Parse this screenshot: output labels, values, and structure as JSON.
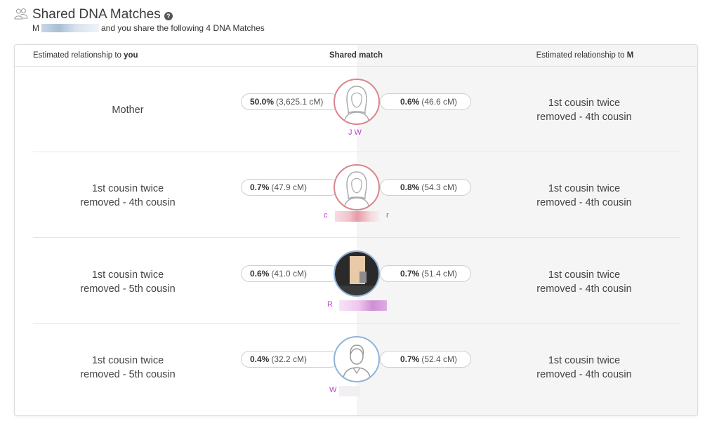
{
  "header": {
    "title": "Shared DNA Matches",
    "help_symbol": "?",
    "subtitle_initial": "M",
    "subtitle_text": "and you share the following 4 DNA Matches"
  },
  "columns": {
    "left_prefix": "Estimated relationship to ",
    "left_bold": "you",
    "middle": "Shared match",
    "right_prefix": "Estimated relationship to ",
    "right_bold": "M"
  },
  "matches": [
    {
      "rel_you": [
        "Mother"
      ],
      "you_pct": "50.0%",
      "you_cm": "(3,625.1 cM)",
      "m_pct": "0.6%",
      "m_cm": "(46.6 cM)",
      "rel_m": [
        "1st cousin twice",
        "removed - 4th cousin"
      ],
      "avatar": "female-silhouette-icon",
      "name_start": "J W",
      "name_end": ""
    },
    {
      "rel_you": [
        "1st cousin twice",
        "removed - 4th cousin"
      ],
      "you_pct": "0.7%",
      "you_cm": "(47.9 cM)",
      "m_pct": "0.8%",
      "m_cm": "(54.3 cM)",
      "rel_m": [
        "1st cousin twice",
        "removed - 4th cousin"
      ],
      "avatar": "female-silhouette-icon",
      "name_start": "c",
      "name_end": "r"
    },
    {
      "rel_you": [
        "1st cousin twice",
        "removed - 5th cousin"
      ],
      "you_pct": "0.6%",
      "you_cm": "(41.0 cM)",
      "m_pct": "0.7%",
      "m_cm": "(51.4 cM)",
      "rel_m": [
        "1st cousin twice",
        "removed - 4th cousin"
      ],
      "avatar": "photo-avatar",
      "name_start": "R",
      "name_end": ""
    },
    {
      "rel_you": [
        "1st cousin twice",
        "removed - 5th cousin"
      ],
      "you_pct": "0.4%",
      "you_cm": "(32.2 cM)",
      "m_pct": "0.7%",
      "m_cm": "(52.4 cM)",
      "rel_m": [
        "1st cousin twice",
        "removed - 4th cousin"
      ],
      "avatar": "male-silhouette-icon",
      "name_start": "W",
      "name_end": ""
    }
  ],
  "colors": {
    "female_ring": "#d9868c",
    "male_ring": "#90b4d8",
    "name_color": "#b548c6"
  }
}
